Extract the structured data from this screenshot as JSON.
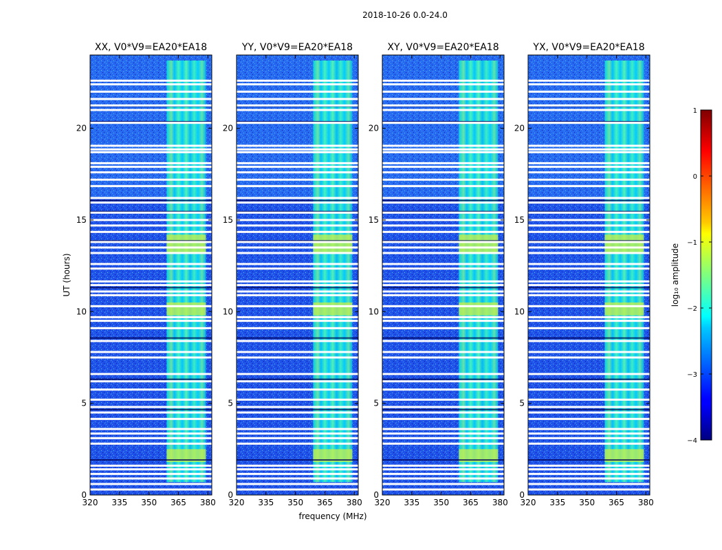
{
  "figure": {
    "suptitle": "2018-10-26 0.0-24.0"
  },
  "chart_data": {
    "type": "heatmap",
    "x_label": "frequency (MHz)",
    "y_label": "UT (hours)",
    "x_range": [
      320,
      382
    ],
    "y_range": [
      0,
      24
    ],
    "x_ticks": [
      320,
      335,
      350,
      365,
      380
    ],
    "y_ticks": [
      0,
      5,
      10,
      15,
      20
    ],
    "panels": [
      {
        "title": "XX, V0*V9=EA20*EA18",
        "polarization": "XX"
      },
      {
        "title": "YY, V0*V9=EA20*EA18",
        "polarization": "YY"
      },
      {
        "title": "XY, V0*V9=EA20*EA18",
        "polarization": "XY"
      },
      {
        "title": "YX, V0*V9=EA20*EA18",
        "polarization": "YX"
      }
    ],
    "colorbar": {
      "label": "log₁₀ amplitude",
      "range": [
        -4,
        1
      ],
      "ticks": [
        "1",
        "0",
        "−1",
        "−2",
        "−3",
        "−4"
      ],
      "colormap": "jet"
    },
    "rfi_band_mhz": [
      359,
      379
    ],
    "bright_rfi_hours": [
      [
        1.8,
        2.5
      ],
      [
        9.8,
        10.5
      ],
      [
        13.2,
        14.2
      ]
    ],
    "flagged_rows_hours": [
      0.3,
      0.6,
      0.9,
      1.15,
      1.4,
      1.6,
      2.8,
      3.1,
      3.35,
      3.6,
      4.15,
      4.5,
      4.8,
      5.2,
      5.75,
      6.2,
      6.6,
      7.5,
      7.8,
      8.4,
      9.1,
      9.5,
      9.7,
      10.3,
      10.9,
      11.1,
      11.45,
      11.65,
      12.35,
      12.6,
      13.2,
      13.5,
      13.8,
      14.35,
      14.7,
      15.0,
      15.4,
      15.95,
      16.2,
      16.85,
      17.2,
      17.6,
      17.9,
      18.1,
      18.7,
      18.85,
      19.05,
      20.3,
      21.0,
      21.25,
      21.6,
      22.0,
      22.4,
      22.6
    ],
    "dark_rows_hours": [
      1.95,
      4.55,
      4.7,
      6.35,
      8.6,
      9.75,
      11.35,
      12.4,
      13.9,
      15.5,
      16.1,
      20.4,
      21.25,
      22.05
    ]
  }
}
